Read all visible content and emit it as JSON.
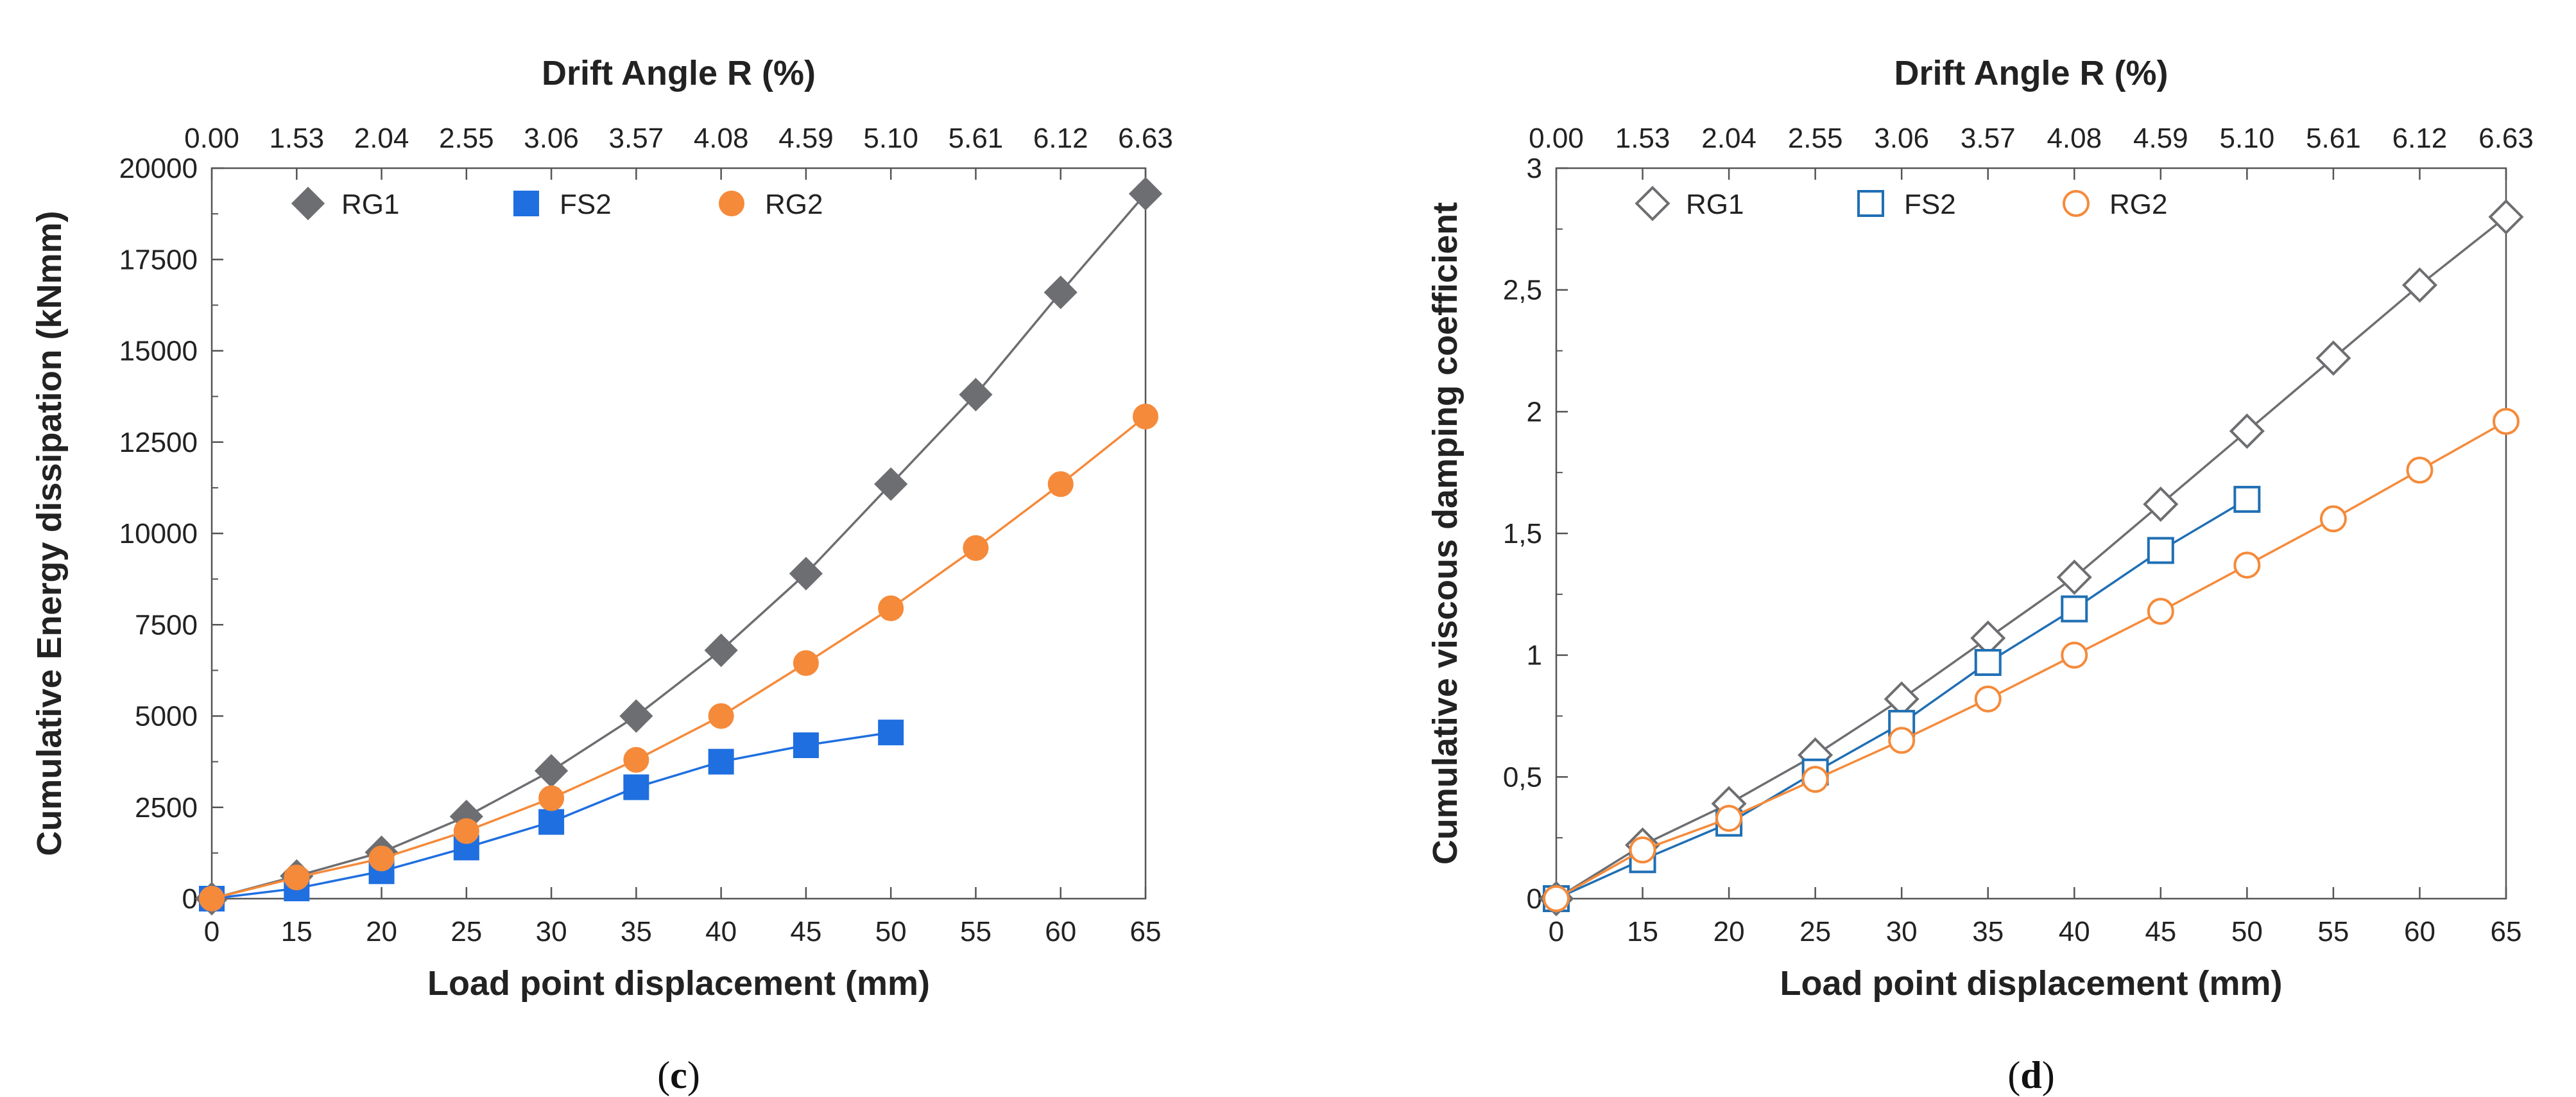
{
  "chart_data": [
    {
      "type": "line",
      "caption": "(c)",
      "caption_letter": "c",
      "title": "",
      "xlabel": "Load point displacement (mm)",
      "ylabel": "Cumulative Energy dissipation (kNmm)",
      "top_xlabel": "Drift Angle R (%)",
      "categories": [
        "0",
        "15",
        "20",
        "25",
        "30",
        "35",
        "40",
        "45",
        "50",
        "55",
        "60",
        "65"
      ],
      "top_categories": [
        "0.00",
        "1.53",
        "2.04",
        "2.55",
        "3.06",
        "3.57",
        "4.08",
        "4.59",
        "5.10",
        "5.61",
        "6.12",
        "6.63"
      ],
      "ylim": [
        0,
        20000
      ],
      "yticks": [
        0,
        2500,
        5000,
        7500,
        10000,
        12500,
        15000,
        17500,
        20000
      ],
      "ytick_labels": [
        "0",
        "2500",
        "5000",
        "7500",
        "10000",
        "12500",
        "15000",
        "17500",
        "20000"
      ],
      "legend_position": "top-left",
      "series": [
        {
          "name": "RG1",
          "marker": "diamond",
          "filled": true,
          "color": "#6d6e71",
          "values": [
            0,
            620,
            1270,
            2250,
            3500,
            5000,
            6800,
            8900,
            11350,
            13800,
            16600,
            19300
          ]
        },
        {
          "name": "FS2",
          "marker": "square",
          "filled": true,
          "color": "#1f6fe0",
          "values": [
            0,
            280,
            750,
            1400,
            2100,
            3050,
            3750,
            4200,
            4550,
            null,
            null,
            null
          ]
        },
        {
          "name": "RG2",
          "marker": "circle",
          "filled": true,
          "color": "#f58a3a",
          "values": [
            0,
            580,
            1100,
            1850,
            2750,
            3800,
            5000,
            6450,
            7950,
            9600,
            11350,
            13200
          ]
        }
      ]
    },
    {
      "type": "line",
      "caption": "(d)",
      "caption_letter": "d",
      "title": "",
      "xlabel": "Load point displacement (mm)",
      "ylabel": "Cumulative viscous damping coefficient",
      "top_xlabel": "Drift Angle R (%)",
      "categories": [
        "0",
        "15",
        "20",
        "25",
        "30",
        "35",
        "40",
        "45",
        "50",
        "55",
        "60",
        "65"
      ],
      "top_categories": [
        "0.00",
        "1.53",
        "2.04",
        "2.55",
        "3.06",
        "3.57",
        "4.08",
        "4.59",
        "5.10",
        "5.61",
        "6.12",
        "6.63"
      ],
      "ylim": [
        0,
        3
      ],
      "yticks": [
        0,
        0.5,
        1,
        1.5,
        2,
        2.5,
        3
      ],
      "ytick_labels": [
        "0",
        "0,5",
        "1",
        "1,5",
        "2",
        "2,5",
        "3"
      ],
      "legend_position": "top-left",
      "series": [
        {
          "name": "RG1",
          "marker": "diamond",
          "filled": false,
          "color": "#6d6e71",
          "values": [
            0,
            0.22,
            0.39,
            0.59,
            0.82,
            1.07,
            1.32,
            1.62,
            1.92,
            2.22,
            2.52,
            2.8
          ]
        },
        {
          "name": "FS2",
          "marker": "square",
          "filled": false,
          "color": "#1f6fb4",
          "values": [
            0,
            0.16,
            0.31,
            0.52,
            0.72,
            0.97,
            1.19,
            1.43,
            1.64,
            null,
            null,
            null
          ]
        },
        {
          "name": "RG2",
          "marker": "circle",
          "filled": false,
          "color": "#f58a3a",
          "values": [
            0,
            0.2,
            0.33,
            0.49,
            0.65,
            0.82,
            1.0,
            1.18,
            1.37,
            1.56,
            1.76,
            1.96
          ]
        }
      ]
    }
  ]
}
